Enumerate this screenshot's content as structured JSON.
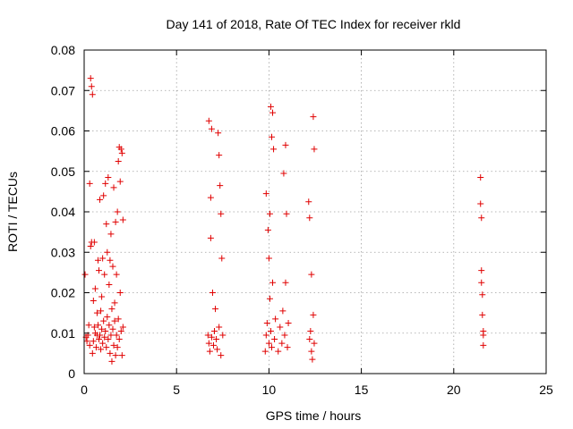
{
  "chart_data": {
    "type": "scatter",
    "title": "Day 141 of 2018, Rate Of TEC Index for receiver rkld",
    "xlabel": "GPS time / hours",
    "ylabel": "ROTI / TECUs",
    "xlim": [
      0,
      25
    ],
    "ylim": [
      0,
      0.08
    ],
    "xticks": [
      0,
      5,
      10,
      15,
      20,
      25
    ],
    "yticks": [
      0,
      0.01,
      0.02,
      0.03,
      0.04,
      0.05,
      0.06,
      0.07,
      0.08
    ],
    "xtick_labels": [
      "0",
      "5",
      "10",
      "15",
      "20",
      "25"
    ],
    "ytick_labels": [
      "0",
      "0.01",
      "0.02",
      "0.03",
      "0.04",
      "0.05",
      "0.06",
      "0.07",
      "0.08"
    ],
    "grid": true,
    "marker": "+",
    "color": "#e00000",
    "series": [
      {
        "points": [
          [
            0.05,
            0.0245
          ],
          [
            0.1,
            0.009
          ],
          [
            0.15,
            0.008
          ],
          [
            0.2,
            0.0095
          ],
          [
            0.25,
            0.012
          ],
          [
            0.3,
            0.007
          ],
          [
            0.3,
            0.047
          ],
          [
            0.35,
            0.0315
          ],
          [
            0.35,
            0.073
          ],
          [
            0.4,
            0.071
          ],
          [
            0.4,
            0.0325
          ],
          [
            0.45,
            0.069
          ],
          [
            0.45,
            0.005
          ],
          [
            0.5,
            0.018
          ],
          [
            0.5,
            0.008
          ],
          [
            0.55,
            0.0115
          ],
          [
            0.55,
            0.0325
          ],
          [
            0.6,
            0.021
          ],
          [
            0.6,
            0.01
          ],
          [
            0.65,
            0.0065
          ],
          [
            0.7,
            0.015
          ],
          [
            0.7,
            0.0095
          ],
          [
            0.75,
            0.028
          ],
          [
            0.75,
            0.012
          ],
          [
            0.8,
            0.0255
          ],
          [
            0.8,
            0.0085
          ],
          [
            0.85,
            0.0095
          ],
          [
            0.85,
            0.043
          ],
          [
            0.9,
            0.0155
          ],
          [
            0.9,
            0.006
          ],
          [
            0.95,
            0.019
          ],
          [
            0.95,
            0.011
          ],
          [
            1.0,
            0.0075
          ],
          [
            1.0,
            0.0285
          ],
          [
            1.05,
            0.013
          ],
          [
            1.05,
            0.044
          ],
          [
            1.1,
            0.0245
          ],
          [
            1.1,
            0.009
          ],
          [
            1.15,
            0.0105
          ],
          [
            1.15,
            0.047
          ],
          [
            1.2,
            0.037
          ],
          [
            1.2,
            0.0065
          ],
          [
            1.25,
            0.03
          ],
          [
            1.25,
            0.014
          ],
          [
            1.3,
            0.0485
          ],
          [
            1.3,
            0.0085
          ],
          [
            1.35,
            0.022
          ],
          [
            1.35,
            0.012
          ],
          [
            1.4,
            0.028
          ],
          [
            1.4,
            0.005
          ],
          [
            1.45,
            0.0345
          ],
          [
            1.45,
            0.0095
          ],
          [
            1.5,
            0.016
          ],
          [
            1.5,
            0.003
          ],
          [
            1.55,
            0.0265
          ],
          [
            1.55,
            0.011
          ],
          [
            1.6,
            0.046
          ],
          [
            1.6,
            0.007
          ],
          [
            1.65,
            0.0175
          ],
          [
            1.65,
            0.013
          ],
          [
            1.7,
            0.0375
          ],
          [
            1.7,
            0.0045
          ],
          [
            1.75,
            0.0095
          ],
          [
            1.75,
            0.0245
          ],
          [
            1.8,
            0.04
          ],
          [
            1.8,
            0.0065
          ],
          [
            1.85,
            0.0525
          ],
          [
            1.85,
            0.0135
          ],
          [
            1.9,
            0.056
          ],
          [
            1.9,
            0.0085
          ],
          [
            1.95,
            0.0475
          ],
          [
            1.95,
            0.02
          ],
          [
            2.0,
            0.0555
          ],
          [
            2.0,
            0.0105
          ],
          [
            2.05,
            0.0545
          ],
          [
            2.05,
            0.0045
          ],
          [
            2.1,
            0.038
          ],
          [
            2.1,
            0.0115
          ],
          [
            6.7,
            0.0095
          ],
          [
            6.75,
            0.0625
          ],
          [
            6.75,
            0.0075
          ],
          [
            6.8,
            0.0055
          ],
          [
            6.85,
            0.0435
          ],
          [
            6.85,
            0.0335
          ],
          [
            6.9,
            0.0605
          ],
          [
            6.9,
            0.009
          ],
          [
            6.95,
            0.02
          ],
          [
            7.0,
            0.007
          ],
          [
            7.05,
            0.0105
          ],
          [
            7.1,
            0.016
          ],
          [
            7.15,
            0.0085
          ],
          [
            7.2,
            0.006
          ],
          [
            7.25,
            0.0595
          ],
          [
            7.3,
            0.054
          ],
          [
            7.3,
            0.0115
          ],
          [
            7.35,
            0.0465
          ],
          [
            7.4,
            0.0395
          ],
          [
            7.4,
            0.0045
          ],
          [
            7.45,
            0.0285
          ],
          [
            7.5,
            0.0095
          ],
          [
            9.8,
            0.0055
          ],
          [
            9.85,
            0.0445
          ],
          [
            9.85,
            0.0095
          ],
          [
            9.9,
            0.0125
          ],
          [
            9.95,
            0.0355
          ],
          [
            10.0,
            0.0075
          ],
          [
            10.0,
            0.0285
          ],
          [
            10.05,
            0.0395
          ],
          [
            10.05,
            0.0185
          ],
          [
            10.1,
            0.066
          ],
          [
            10.1,
            0.0105
          ],
          [
            10.15,
            0.0585
          ],
          [
            10.15,
            0.0065
          ],
          [
            10.2,
            0.0645
          ],
          [
            10.2,
            0.0225
          ],
          [
            10.25,
            0.0555
          ],
          [
            10.3,
            0.0085
          ],
          [
            10.35,
            0.0135
          ],
          [
            10.5,
            0.0055
          ],
          [
            10.6,
            0.0115
          ],
          [
            10.7,
            0.0075
          ],
          [
            10.75,
            0.0155
          ],
          [
            10.8,
            0.0495
          ],
          [
            10.85,
            0.0095
          ],
          [
            10.9,
            0.0565
          ],
          [
            10.9,
            0.0225
          ],
          [
            10.95,
            0.0395
          ],
          [
            11.0,
            0.0065
          ],
          [
            11.05,
            0.0125
          ],
          [
            12.15,
            0.0425
          ],
          [
            12.2,
            0.0085
          ],
          [
            12.2,
            0.0385
          ],
          [
            12.25,
            0.0105
          ],
          [
            12.3,
            0.0245
          ],
          [
            12.3,
            0.0055
          ],
          [
            12.35,
            0.0035
          ],
          [
            12.4,
            0.0635
          ],
          [
            12.4,
            0.0145
          ],
          [
            12.45,
            0.0555
          ],
          [
            12.45,
            0.0075
          ],
          [
            21.45,
            0.0485
          ],
          [
            21.45,
            0.042
          ],
          [
            21.5,
            0.0385
          ],
          [
            21.5,
            0.0255
          ],
          [
            21.5,
            0.0225
          ],
          [
            21.55,
            0.0195
          ],
          [
            21.55,
            0.0145
          ],
          [
            21.6,
            0.0105
          ],
          [
            21.6,
            0.0095
          ],
          [
            21.6,
            0.007
          ]
        ]
      }
    ]
  }
}
